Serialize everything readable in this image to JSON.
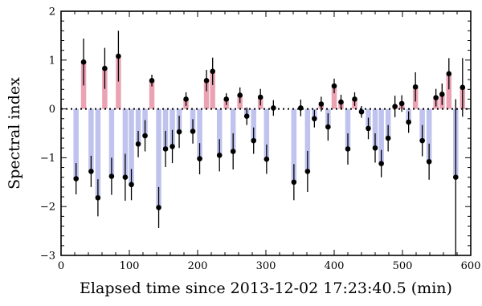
{
  "chart_data": {
    "type": "bar",
    "title": "",
    "xlabel": "Elapsed time since 2013-12-02 17:23:40.5 (min)",
    "ylabel": "Spectral index",
    "xlim": [
      0,
      600
    ],
    "ylim": [
      -3,
      2
    ],
    "xticks": [
      "0",
      "100",
      "200",
      "300",
      "400",
      "500",
      "600"
    ],
    "yticks": [
      "−3",
      "−2",
      "−1",
      "0",
      "1",
      "2"
    ],
    "grid": false,
    "reference_line": 0,
    "colors": {
      "positive_bar": "#eba3b4",
      "negative_bar": "#bfc3ee",
      "marker": "#000000"
    },
    "series": [
      {
        "values": [
          {
            "x": 22,
            "y": -1.43,
            "err": 0.32
          },
          {
            "x": 33,
            "y": 0.96,
            "err": 0.48
          },
          {
            "x": 44,
            "y": -1.28,
            "err": 0.32
          },
          {
            "x": 54,
            "y": -1.82,
            "err": 0.38
          },
          {
            "x": 64,
            "y": 0.83,
            "err": 0.42
          },
          {
            "x": 74,
            "y": -1.38,
            "err": 0.38
          },
          {
            "x": 84,
            "y": 1.08,
            "err": 0.52
          },
          {
            "x": 94,
            "y": -1.4,
            "err": 0.48
          },
          {
            "x": 103,
            "y": -1.55,
            "err": 0.32
          },
          {
            "x": 113,
            "y": -0.72,
            "err": 0.27
          },
          {
            "x": 123,
            "y": -0.55,
            "err": 0.32
          },
          {
            "x": 133,
            "y": 0.58,
            "err": 0.12
          },
          {
            "x": 143,
            "y": -2.02,
            "err": 0.42
          },
          {
            "x": 153,
            "y": -0.82,
            "err": 0.37
          },
          {
            "x": 163,
            "y": -0.77,
            "err": 0.34
          },
          {
            "x": 173,
            "y": -0.47,
            "err": 0.33
          },
          {
            "x": 183,
            "y": 0.2,
            "err": 0.14
          },
          {
            "x": 193,
            "y": -0.46,
            "err": 0.25
          },
          {
            "x": 203,
            "y": -1.02,
            "err": 0.32
          },
          {
            "x": 213,
            "y": 0.58,
            "err": 0.22
          },
          {
            "x": 222,
            "y": 0.77,
            "err": 0.28
          },
          {
            "x": 232,
            "y": -0.95,
            "err": 0.33
          },
          {
            "x": 242,
            "y": 0.2,
            "err": 0.12
          },
          {
            "x": 252,
            "y": -0.87,
            "err": 0.37
          },
          {
            "x": 262,
            "y": 0.28,
            "err": 0.16
          },
          {
            "x": 272,
            "y": -0.15,
            "err": 0.18
          },
          {
            "x": 282,
            "y": -0.65,
            "err": 0.27
          },
          {
            "x": 292,
            "y": 0.24,
            "err": 0.17
          },
          {
            "x": 301,
            "y": -1.03,
            "err": 0.3
          },
          {
            "x": 311,
            "y": 0.02,
            "err": 0.16
          },
          {
            "x": 341,
            "y": -1.5,
            "err": 0.37
          },
          {
            "x": 351,
            "y": 0.02,
            "err": 0.17
          },
          {
            "x": 361,
            "y": -1.28,
            "err": 0.42
          },
          {
            "x": 371,
            "y": -0.2,
            "err": 0.18
          },
          {
            "x": 381,
            "y": 0.1,
            "err": 0.15
          },
          {
            "x": 391,
            "y": -0.37,
            "err": 0.28
          },
          {
            "x": 400,
            "y": 0.47,
            "err": 0.15
          },
          {
            "x": 410,
            "y": 0.14,
            "err": 0.15
          },
          {
            "x": 420,
            "y": -0.82,
            "err": 0.32
          },
          {
            "x": 430,
            "y": 0.2,
            "err": 0.14
          },
          {
            "x": 440,
            "y": -0.06,
            "err": 0.12
          },
          {
            "x": 450,
            "y": -0.4,
            "err": 0.22
          },
          {
            "x": 460,
            "y": -0.8,
            "err": 0.3
          },
          {
            "x": 469,
            "y": -1.12,
            "err": 0.28
          },
          {
            "x": 479,
            "y": -0.6,
            "err": 0.27
          },
          {
            "x": 489,
            "y": 0.05,
            "err": 0.22
          },
          {
            "x": 499,
            "y": 0.11,
            "err": 0.17
          },
          {
            "x": 509,
            "y": -0.27,
            "err": 0.22
          },
          {
            "x": 519,
            "y": 0.45,
            "err": 0.3
          },
          {
            "x": 529,
            "y": -0.65,
            "err": 0.32
          },
          {
            "x": 539,
            "y": -1.08,
            "err": 0.37
          },
          {
            "x": 549,
            "y": 0.23,
            "err": 0.18
          },
          {
            "x": 558,
            "y": 0.3,
            "err": 0.22
          },
          {
            "x": 568,
            "y": 0.72,
            "err": 0.32
          },
          {
            "x": 578,
            "y": -1.4,
            "err": 1.6
          },
          {
            "x": 588,
            "y": 0.44,
            "err": 0.6
          }
        ]
      }
    ]
  }
}
